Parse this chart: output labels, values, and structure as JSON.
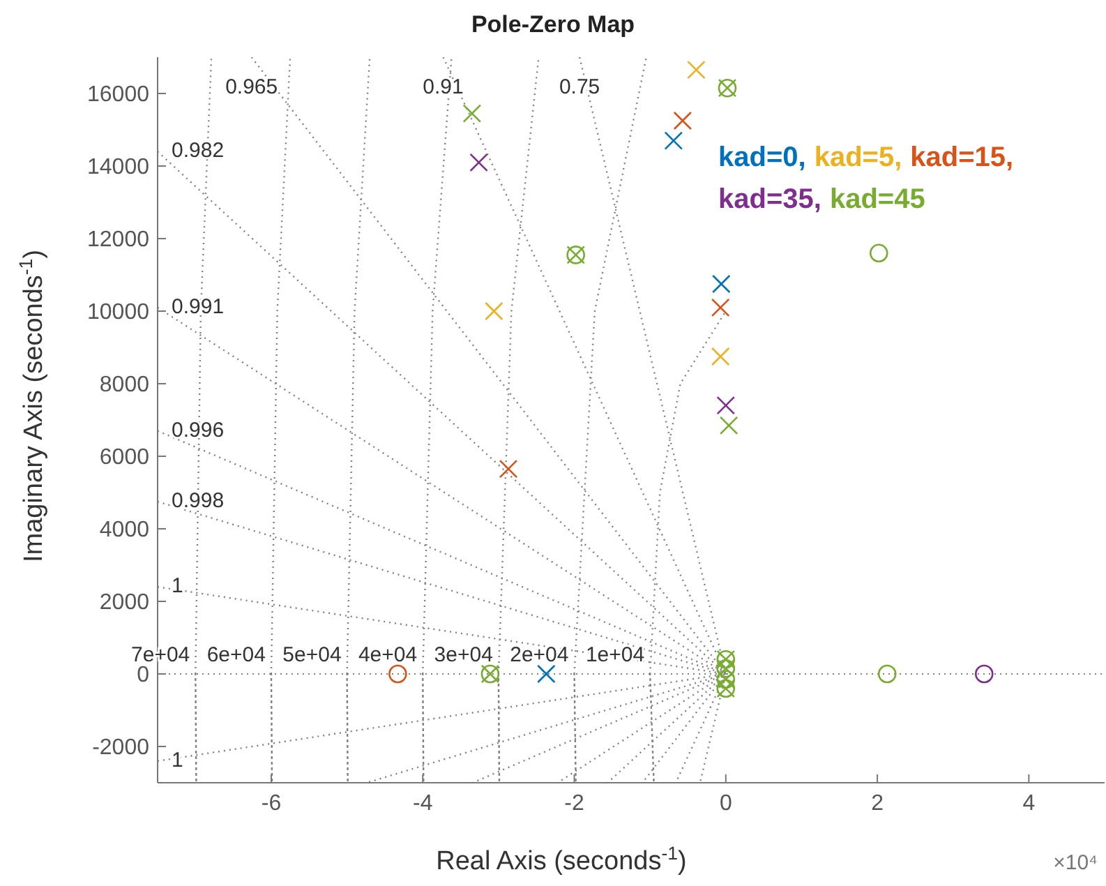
{
  "chart_data": {
    "type": "scatter",
    "title": "Pole-Zero Map",
    "xlabel": "Real Axis (seconds$^{-1}$)",
    "ylabel": "Imaginary Axis (seconds$^{-1}$)",
    "xlim": [
      -7.5,
      5
    ],
    "ylim": [
      -3000,
      17000
    ],
    "xticks": [
      -6,
      -4,
      -2,
      0,
      2,
      4
    ],
    "yticks": [
      -2000,
      0,
      2000,
      4000,
      6000,
      8000,
      10000,
      12000,
      14000,
      16000
    ],
    "legend": "top right",
    "series": [
      {
        "name": "kad=0",
        "color": "#0072bd",
        "marker": "cross",
        "x": [
          -0.69,
          -0.06,
          -2.37
        ],
        "values": [
          14700,
          10750,
          0
        ]
      },
      {
        "name": "kad=5",
        "color": "#edb120",
        "marker": "cross",
        "x": [
          -0.39,
          -3.06,
          -0.07
        ],
        "values": [
          16650,
          10000,
          8750
        ]
      },
      {
        "name": "kad=15",
        "color": "#d95319",
        "marker": "cross",
        "x": [
          -0.57,
          -0.07,
          -2.87
        ],
        "values": [
          15250,
          10100,
          5650
        ]
      },
      {
        "color": "#d95319",
        "marker": "circle",
        "x": [
          -4.33
        ],
        "values": [
          0
        ]
      },
      {
        "name": "kad=35",
        "color": "#7e2f8e",
        "marker": "cross",
        "x": [
          -3.26,
          0
        ],
        "values": [
          14100,
          7400
        ]
      },
      {
        "color": "#7e2f8e",
        "marker": "circle",
        "x": [
          3.41
        ],
        "values": [
          0
        ]
      },
      {
        "color": "#77ac30",
        "marker": "circle",
        "x": [
          0.02,
          -1.98,
          -3.11,
          0,
          0,
          0,
          0,
          2.02,
          2.13
        ],
        "values": [
          16150,
          11550,
          0,
          400,
          150,
          -150,
          -400,
          11600,
          0
        ]
      },
      {
        "name": "kad=45",
        "color": "#77ac30",
        "marker": "cross",
        "x": [
          -3.35,
          0.04,
          0.02,
          -1.98,
          -3.11,
          0,
          0,
          0,
          0
        ],
        "values": [
          15450,
          6850,
          16150,
          11550,
          0,
          400,
          150,
          -150,
          -400
        ]
      },
      {
        "type": "line",
        "color": "#808080",
        "line_style": "dotted",
        "x": [
          -6.26,
          0,
          -1.1
        ],
        "values": [
          17000,
          0,
          -3000
        ]
      },
      {
        "type": "line",
        "color": "#808080",
        "line_style": "dotted",
        "x": [
          -3.73,
          0,
          -0.66
        ],
        "values": [
          17000,
          0,
          -3000
        ]
      },
      {
        "type": "line",
        "color": "#808080",
        "line_style": "dotted",
        "x": [
          -1.93,
          0,
          -0.34
        ],
        "values": [
          17000,
          0,
          -3000
        ]
      },
      {
        "type": "line",
        "color": "#808080",
        "line_style": "dotted",
        "x": [
          -7.5,
          0,
          -1.56
        ],
        "values": [
          14400,
          0,
          -3000
        ]
      },
      {
        "type": "line",
        "color": "#808080",
        "line_style": "dotted",
        "x": [
          -7.5,
          0,
          -2.22
        ],
        "values": [
          10100,
          0,
          -3000
        ]
      },
      {
        "type": "line",
        "color": "#808080",
        "line_style": "dotted",
        "x": [
          -7.5,
          0,
          -3.34
        ],
        "values": [
          6700,
          0,
          -3000
        ]
      },
      {
        "type": "line",
        "color": "#808080",
        "line_style": "dotted",
        "x": [
          -7.5,
          0,
          -4.74
        ],
        "values": [
          4750,
          0,
          -3000
        ]
      },
      {
        "type": "line",
        "color": "#808080",
        "line_style": "dotted",
        "x": [
          -7.5,
          0
        ],
        "values": [
          2400,
          0
        ]
      },
      {
        "type": "line",
        "color": "#808080",
        "line_style": "dotted",
        "x": [
          -7.5,
          0
        ],
        "values": [
          -2400,
          0
        ]
      },
      {
        "type": "line",
        "color": "#808080",
        "line_style": "dotted",
        "x": [
          -1,
          -0.95,
          -1,
          -0.87,
          -0.6,
          0
        ],
        "values": [
          0,
          -3000,
          0,
          5000,
          8000,
          10000
        ]
      },
      {
        "type": "line",
        "color": "#808080",
        "line_style": "dotted",
        "x": [
          -2,
          -1.98,
          -2,
          -1.73,
          -1.05
        ],
        "values": [
          0,
          -3000,
          0,
          10000,
          17000
        ]
      },
      {
        "type": "line",
        "color": "#808080",
        "line_style": "dotted",
        "x": [
          -3,
          -2.99,
          -3,
          -2.83,
          -2.47
        ],
        "values": [
          0,
          -3000,
          0,
          10000,
          17000
        ]
      },
      {
        "type": "line",
        "color": "#808080",
        "line_style": "dotted",
        "x": [
          -4,
          -3.99,
          -4,
          -3.87,
          -3.62
        ],
        "values": [
          0,
          -3000,
          0,
          10000,
          17000
        ]
      },
      {
        "type": "line",
        "color": "#808080",
        "line_style": "dotted",
        "x": [
          -5,
          -4.99,
          -5,
          -4.9,
          -4.7
        ],
        "values": [
          0,
          -3000,
          0,
          10000,
          17000
        ]
      },
      {
        "type": "line",
        "color": "#808080",
        "line_style": "dotted",
        "x": [
          -6,
          -5.99,
          -6,
          -5.92,
          -5.75
        ],
        "values": [
          0,
          -3000,
          0,
          10000,
          17000
        ]
      },
      {
        "type": "line",
        "color": "#808080",
        "line_style": "dotted",
        "x": [
          -7,
          -6.99,
          -7,
          -6.93,
          -6.79
        ],
        "values": [
          0,
          -3000,
          0,
          10000,
          17000
        ]
      }
    ],
    "ref_lines": [
      {
        "axis": "y",
        "value": 0,
        "color": "#808080",
        "line_style": "dotted"
      }
    ],
    "annotations": [
      "0.965",
      "0.91",
      "0.75",
      "0.982",
      "0.991",
      "0.996",
      "0.998",
      "1",
      "1",
      "1e+04",
      "2e+04",
      "3e+04",
      "4e+04",
      "5e+04",
      "6e+04",
      "7e+04",
      ",",
      ",",
      ",",
      ",",
      "×10⁴"
    ]
  }
}
